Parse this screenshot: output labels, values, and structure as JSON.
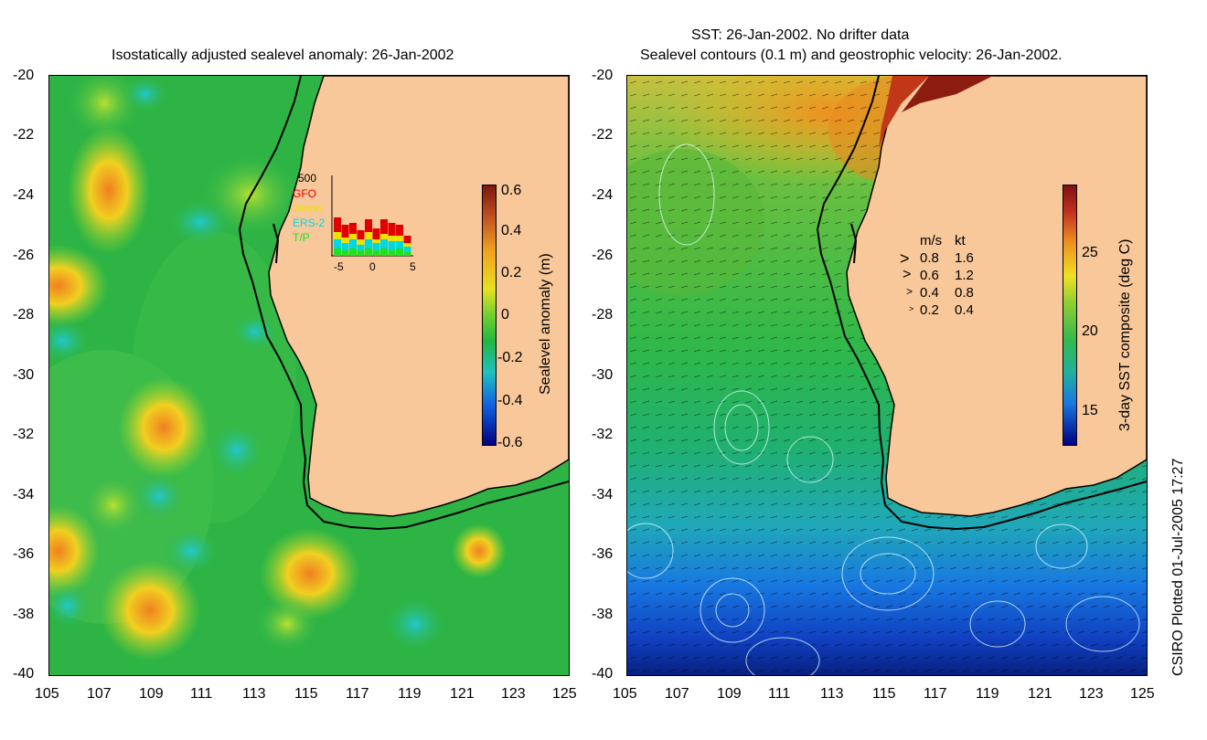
{
  "left_panel": {
    "title": "Isostatically adjusted sealevel anomaly: 26-Jan-2002",
    "y_ticks": [
      "-20",
      "-22",
      "-24",
      "-26",
      "-28",
      "-30",
      "-32",
      "-34",
      "-36",
      "-38",
      "-40"
    ],
    "x_ticks": [
      "105",
      "107",
      "109",
      "111",
      "113",
      "115",
      "117",
      "119",
      "121",
      "123",
      "125"
    ],
    "colorbar": {
      "label": "Sealevel anomaly (m)",
      "ticks": [
        "0.6",
        "0.4",
        "0.2",
        "0",
        "-0.2",
        "-0.4",
        "-0.6"
      ]
    },
    "inset": {
      "top_label": "500",
      "legend": [
        {
          "name": "GFO",
          "color": "#e00000"
        },
        {
          "name": "Jason",
          "color": "#f0e000"
        },
        {
          "name": "ERS-2",
          "color": "#00d8e0"
        },
        {
          "name": "T/P",
          "color": "#20e020"
        }
      ],
      "x_ticks": [
        "-5",
        "0",
        "5"
      ]
    }
  },
  "right_panel": {
    "title_line1": "SST: 26-Jan-2002. No drifter data",
    "title_line2": "Sealevel contours (0.1 m) and geostrophic velocity: 26-Jan-2002.",
    "y_ticks": [
      "-20",
      "-22",
      "-24",
      "-26",
      "-28",
      "-30",
      "-32",
      "-34",
      "-36",
      "-38",
      "-40"
    ],
    "x_ticks": [
      "105",
      "107",
      "109",
      "111",
      "113",
      "115",
      "117",
      "119",
      "121",
      "123",
      "125"
    ],
    "colorbar": {
      "label": "3-day SST composite (deg C)",
      "ticks": [
        "25",
        "20",
        "15"
      ]
    },
    "velocity_legend": {
      "header_ms": "m/s",
      "header_kt": "kt",
      "rows": [
        {
          "ms": "0.8",
          "kt": "1.6"
        },
        {
          "ms": "0.6",
          "kt": "1.2"
        },
        {
          "ms": "0.4",
          "kt": "0.8"
        },
        {
          "ms": "0.2",
          "kt": "0.4"
        }
      ]
    }
  },
  "credit": "CSIRO Plotted 01-Jul-2005 17:27",
  "colors": {
    "land": "#f8c89a",
    "ocean_left": "#28b840",
    "ocean_right": "#30b858"
  }
}
